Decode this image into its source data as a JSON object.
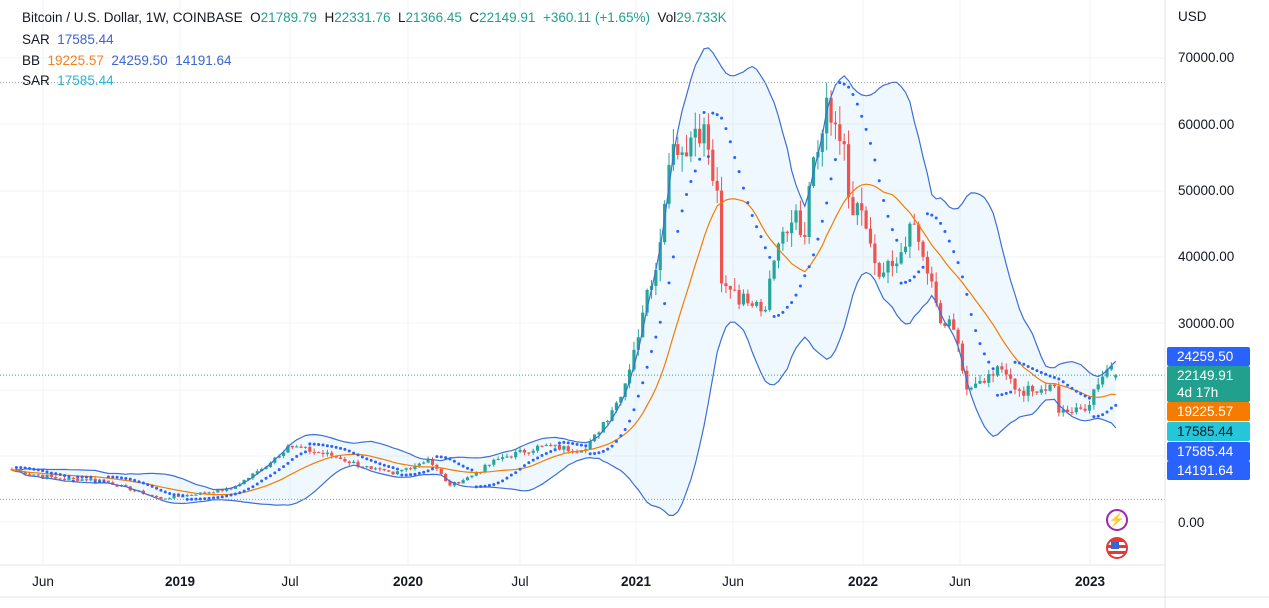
{
  "header": {
    "symbol": "Bitcoin / U.S. Dollar, 1W, COINBASE",
    "o_label": "O",
    "o": "21789.79",
    "h_label": "H",
    "h": "22331.76",
    "l_label": "L",
    "l": "21366.45",
    "c_label": "C",
    "c": "22149.91",
    "change": "+360.11 (+1.65%)",
    "vol_label": "Vol",
    "vol": "29.733K"
  },
  "indicators": {
    "sar1_label": "SAR",
    "sar1_value": "17585.44",
    "bb_label": "BB",
    "bb_mid": "19225.57",
    "bb_upper": "24259.50",
    "bb_lower": "14191.64",
    "sar2_label": "SAR",
    "sar2_value": "17585.44"
  },
  "price_axis": {
    "currency": "USD",
    "ticks": [
      "70000.00",
      "60000.00",
      "50000.00",
      "40000.00",
      "30000.00",
      "0.00"
    ],
    "tags": {
      "bb_upper": "24259.50",
      "last_price": "22149.91",
      "countdown": "4d 17h",
      "bb_mid": "19225.57",
      "sar2": "17585.44",
      "sar1": "17585.44",
      "bb_lower": "14191.64"
    }
  },
  "time_axis": [
    "Jun",
    "2019",
    "Jul",
    "2020",
    "Jul",
    "2021",
    "Jun",
    "2022",
    "Jun",
    "2023"
  ],
  "colors": {
    "up": "#26a69a",
    "down": "#ef5350",
    "bb": "#3d6fd6",
    "bb_mid": "#f57c00",
    "sar": "#2962ff",
    "sar2": "#26c6da",
    "tag_blue": "#2962ff",
    "tag_green": "#22a08e",
    "tag_orange": "#f57c00",
    "tag_cyan": "#26c6da"
  },
  "chart_data": {
    "type": "candlestick",
    "title": "Bitcoin / U.S. Dollar, 1W, COINBASE",
    "ylabel": "USD",
    "ylim": [
      0,
      70000
    ],
    "interval": "1W",
    "close_keypoints_week_price": [
      [
        0,
        7800
      ],
      [
        11,
        6500
      ],
      [
        20,
        6400
      ],
      [
        34,
        3500
      ],
      [
        50,
        5000
      ],
      [
        57,
        8000
      ],
      [
        63,
        11500
      ],
      [
        73,
        10000
      ],
      [
        82,
        8000
      ],
      [
        87,
        7200
      ],
      [
        95,
        9500
      ],
      [
        100,
        5500
      ],
      [
        105,
        7000
      ],
      [
        111,
        9500
      ],
      [
        121,
        11500
      ],
      [
        130,
        10800
      ],
      [
        134,
        13500
      ],
      [
        138,
        18000
      ],
      [
        141,
        23000
      ],
      [
        145,
        35000
      ],
      [
        147,
        38000
      ],
      [
        149,
        48000
      ],
      [
        151,
        57000
      ],
      [
        155,
        58000
      ],
      [
        158,
        60000
      ],
      [
        161,
        50000
      ],
      [
        162,
        36000
      ],
      [
        165,
        35000
      ],
      [
        168,
        33000
      ],
      [
        172,
        32000
      ],
      [
        175,
        42000
      ],
      [
        179,
        47000
      ],
      [
        181,
        43000
      ],
      [
        183,
        55000
      ],
      [
        186,
        64000
      ],
      [
        188,
        60000
      ],
      [
        190,
        57000
      ],
      [
        191,
        49000
      ],
      [
        194,
        47000
      ],
      [
        196,
        42000
      ],
      [
        198,
        37000
      ],
      [
        202,
        39000
      ],
      [
        205,
        45000
      ],
      [
        208,
        40000
      ],
      [
        212,
        30000
      ],
      [
        215,
        29000
      ],
      [
        218,
        20000
      ],
      [
        222,
        21000
      ],
      [
        226,
        23000
      ],
      [
        229,
        20000
      ],
      [
        234,
        19500
      ],
      [
        238,
        20500
      ],
      [
        239,
        16500
      ],
      [
        245,
        16800
      ],
      [
        247,
        20000
      ],
      [
        250,
        23000
      ],
      [
        252,
        22149.91
      ]
    ],
    "last_candle": {
      "open": 21789.79,
      "high": 22331.76,
      "low": 21366.45,
      "close": 22149.91
    },
    "bollinger": {
      "length": 20,
      "mult": 2,
      "basis": 19225.57,
      "upper": 24259.5,
      "lower": 14191.64
    },
    "sar": 17585.44
  }
}
